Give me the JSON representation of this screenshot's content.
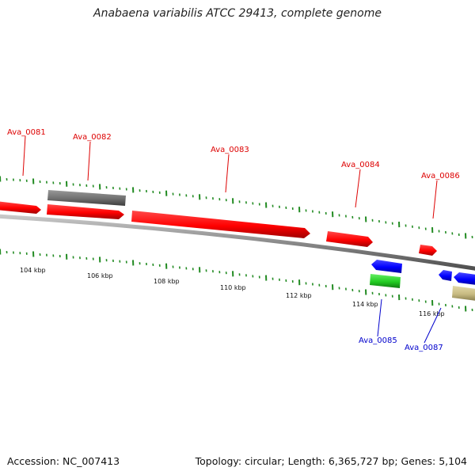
{
  "title": "Anabaena variabilis ATCC 29413, complete genome",
  "footer": {
    "accession": "Accession: NC_007413",
    "summary": "Topology: circular; Length: 6,365,727 bp; Genes: 5,104"
  },
  "colors": {
    "forward_gene": "#ff0000",
    "reverse_gene": "#0000ff",
    "label_forward": "#dd0000",
    "label_reverse": "#0000cc",
    "backbone": "#8a8a8a",
    "tick": "#228b22",
    "gray_feature": "#6f6f6f",
    "green_feature": "#22cc22",
    "tan_feature": "#c8bb82"
  },
  "scale_labels": [
    "104 kbp",
    "106 kbp",
    "108 kbp",
    "110 kbp",
    "112 kbp",
    "114 kbp",
    "116 kbp"
  ],
  "gene_labels": {
    "ava_0081": "Ava_0081",
    "ava_0082": "Ava_0082",
    "ava_0083": "Ava_0083",
    "ava_0084": "Ava_0084",
    "ava_0085": "Ava_0085",
    "ava_0086": "Ava_0086",
    "ava_0087": "Ava_0087"
  }
}
